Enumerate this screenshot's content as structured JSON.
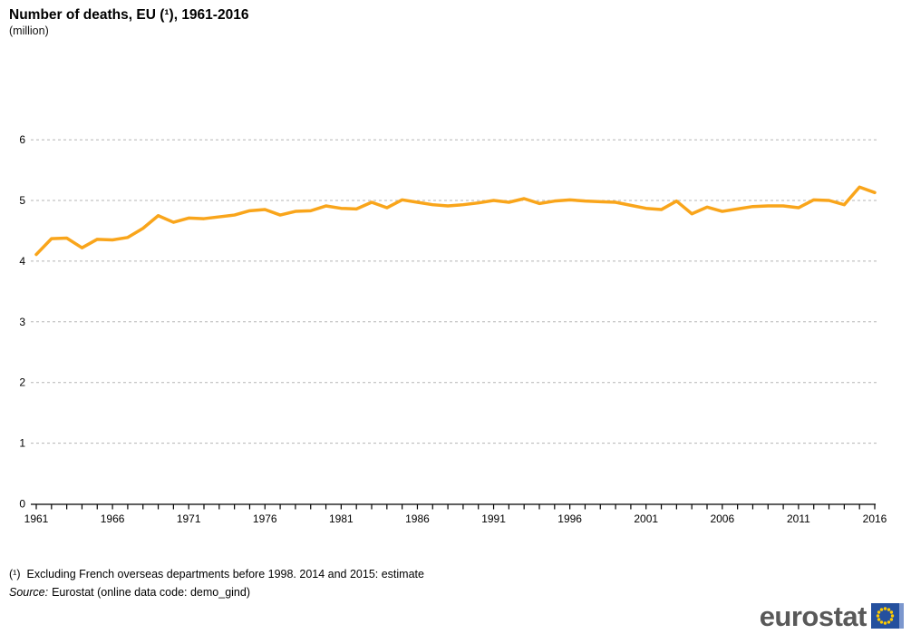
{
  "header": {
    "title": "Number of deaths, EU (¹), 1961-2016",
    "subtitle": "(million)"
  },
  "footer": {
    "note_marker": "(¹)",
    "note_text": "Excluding French overseas departments before 1998. 2014 and 2015: estimate",
    "source_label": "Source:",
    "source_text": "Eurostat (online data code: demo_gind)"
  },
  "logo": {
    "wordmark": "eurostat"
  },
  "colors": {
    "line": "#F9A51B",
    "grid": "#b5b5b5",
    "axis": "#000000",
    "logo_text": "#595959",
    "flag_blue": "#24509E",
    "flag_light_blue": "#7C97CE",
    "star_yellow": "#FFCC00"
  },
  "chart_data": {
    "type": "line",
    "title": "Number of deaths, EU (¹), 1961-2016",
    "xlabel": "",
    "ylabel": "(million)",
    "ylim": [
      0,
      6
    ],
    "yticks": [
      0,
      1,
      2,
      3,
      4,
      5,
      6
    ],
    "grid": "horizontal-dashed",
    "legend": "none",
    "x": [
      1961,
      1962,
      1963,
      1964,
      1965,
      1966,
      1967,
      1968,
      1969,
      1970,
      1971,
      1972,
      1973,
      1974,
      1975,
      1976,
      1977,
      1978,
      1979,
      1980,
      1981,
      1982,
      1983,
      1984,
      1985,
      1986,
      1987,
      1988,
      1989,
      1990,
      1991,
      1992,
      1993,
      1994,
      1995,
      1996,
      1997,
      1998,
      1999,
      2000,
      2001,
      2002,
      2003,
      2004,
      2005,
      2006,
      2007,
      2008,
      2009,
      2010,
      2011,
      2012,
      2013,
      2014,
      2015,
      2016
    ],
    "xtick_labels": [
      1961,
      1966,
      1971,
      1976,
      1981,
      1986,
      1991,
      1996,
      2001,
      2006,
      2011,
      2016
    ],
    "series": [
      {
        "name": "Number of deaths, EU (million)",
        "color": "#F9A51B",
        "values": [
          4.11,
          4.37,
          4.38,
          4.22,
          4.36,
          4.35,
          4.39,
          4.54,
          4.75,
          4.64,
          4.71,
          4.7,
          4.73,
          4.76,
          4.83,
          4.85,
          4.76,
          4.82,
          4.83,
          4.91,
          4.87,
          4.86,
          4.97,
          4.88,
          5.01,
          4.97,
          4.93,
          4.91,
          4.93,
          4.96,
          5.0,
          4.97,
          5.03,
          4.95,
          4.99,
          5.01,
          4.99,
          4.98,
          4.97,
          4.92,
          4.87,
          4.85,
          4.99,
          4.78,
          4.89,
          4.82,
          4.86,
          4.9,
          4.91,
          4.91,
          4.88,
          5.01,
          5.0,
          4.93,
          5.22,
          5.13
        ]
      }
    ]
  }
}
